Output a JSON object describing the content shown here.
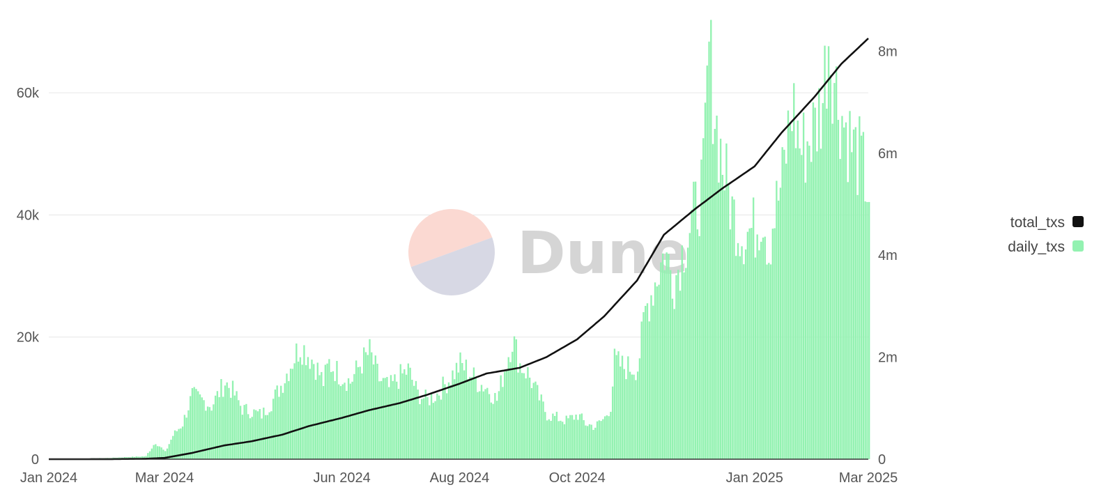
{
  "chart_data": {
    "type": "bar",
    "title": "",
    "xlabel": "",
    "ylabel_left": "",
    "ylabel_right": "",
    "x_ticks": [
      "Jan 2024",
      "Mar 2024",
      "Jun 2024",
      "Aug 2024",
      "Oct 2024",
      "Jan 2025",
      "Mar 2025"
    ],
    "x_range": [
      "2024-01-01",
      "2025-03-01"
    ],
    "y_left_ticks": [
      "0",
      "20k",
      "40k",
      "60k"
    ],
    "y_left_range": [
      0,
      72000
    ],
    "y_right_ticks": [
      "0",
      "2m",
      "4m",
      "6m",
      "8m"
    ],
    "y_right_range": [
      0,
      8620000
    ],
    "grid": true,
    "legend_position": "right",
    "series": [
      {
        "name": "total_txs",
        "type": "line",
        "axis": "right",
        "color": "#111111",
        "points": [
          [
            "2024-01-01",
            0
          ],
          [
            "2024-02-01",
            1000
          ],
          [
            "2024-02-20",
            8000
          ],
          [
            "2024-03-01",
            25000
          ],
          [
            "2024-03-15",
            120000
          ],
          [
            "2024-04-01",
            270000
          ],
          [
            "2024-04-15",
            350000
          ],
          [
            "2024-05-01",
            480000
          ],
          [
            "2024-05-15",
            650000
          ],
          [
            "2024-06-01",
            810000
          ],
          [
            "2024-06-15",
            960000
          ],
          [
            "2024-07-01",
            1100000
          ],
          [
            "2024-07-15",
            1260000
          ],
          [
            "2024-08-01",
            1480000
          ],
          [
            "2024-08-15",
            1680000
          ],
          [
            "2024-09-01",
            1790000
          ],
          [
            "2024-09-15",
            2000000
          ],
          [
            "2024-10-01",
            2350000
          ],
          [
            "2024-10-15",
            2800000
          ],
          [
            "2024-11-01",
            3500000
          ],
          [
            "2024-11-15",
            4400000
          ],
          [
            "2024-12-01",
            4900000
          ],
          [
            "2024-12-15",
            5300000
          ],
          [
            "2025-01-01",
            5740000
          ],
          [
            "2025-01-15",
            6400000
          ],
          [
            "2025-02-01",
            7100000
          ],
          [
            "2025-02-15",
            7750000
          ],
          [
            "2025-03-01",
            8250000
          ]
        ]
      },
      {
        "name": "daily_txs",
        "type": "bar",
        "axis": "left",
        "color": "#93f2b1",
        "points": [
          [
            "2024-01-01",
            0
          ],
          [
            "2024-02-01",
            200
          ],
          [
            "2024-02-20",
            500
          ],
          [
            "2024-02-22",
            1500
          ],
          [
            "2024-02-25",
            2900
          ],
          [
            "2024-03-01",
            1200
          ],
          [
            "2024-03-05",
            4000
          ],
          [
            "2024-03-10",
            6000
          ],
          [
            "2024-03-15",
            10800
          ],
          [
            "2024-03-20",
            10000
          ],
          [
            "2024-03-25",
            9000
          ],
          [
            "2024-04-01",
            13000
          ],
          [
            "2024-04-05",
            11500
          ],
          [
            "2024-04-10",
            8500
          ],
          [
            "2024-04-15",
            8000
          ],
          [
            "2024-04-20",
            7500
          ],
          [
            "2024-04-25",
            9500
          ],
          [
            "2024-05-01",
            13000
          ],
          [
            "2024-05-05",
            16000
          ],
          [
            "2024-05-10",
            19200
          ],
          [
            "2024-05-13",
            18200
          ],
          [
            "2024-05-17",
            16500
          ],
          [
            "2024-05-22",
            13000
          ],
          [
            "2024-05-25",
            16200
          ],
          [
            "2024-05-30",
            14500
          ],
          [
            "2024-06-05",
            13000
          ],
          [
            "2024-06-10",
            16000
          ],
          [
            "2024-06-15",
            18000
          ],
          [
            "2024-06-20",
            13500
          ],
          [
            "2024-06-25",
            12000
          ],
          [
            "2024-07-01",
            14000
          ],
          [
            "2024-07-05",
            15000
          ],
          [
            "2024-07-10",
            11000
          ],
          [
            "2024-07-15",
            10000
          ],
          [
            "2024-07-20",
            11000
          ],
          [
            "2024-07-25",
            13000
          ],
          [
            "2024-08-01",
            16000
          ],
          [
            "2024-08-05",
            15000
          ],
          [
            "2024-08-10",
            13000
          ],
          [
            "2024-08-15",
            12000
          ],
          [
            "2024-08-20",
            10000
          ],
          [
            "2024-08-25",
            16500
          ],
          [
            "2024-08-28",
            20500
          ],
          [
            "2024-09-01",
            16000
          ],
          [
            "2024-09-05",
            14500
          ],
          [
            "2024-09-10",
            11000
          ],
          [
            "2024-09-15",
            7500
          ],
          [
            "2024-09-20",
            7000
          ],
          [
            "2024-09-25",
            6500
          ],
          [
            "2024-10-01",
            7500
          ],
          [
            "2024-10-05",
            6000
          ],
          [
            "2024-10-10",
            5500
          ],
          [
            "2024-10-15",
            7000
          ],
          [
            "2024-10-18",
            9000
          ],
          [
            "2024-10-20",
            16500
          ],
          [
            "2024-10-25",
            15500
          ],
          [
            "2024-11-01",
            15500
          ],
          [
            "2024-11-05",
            25000
          ],
          [
            "2024-11-10",
            30000
          ],
          [
            "2024-11-15",
            35000
          ],
          [
            "2024-11-20",
            30000
          ],
          [
            "2024-11-25",
            36000
          ],
          [
            "2024-12-01",
            42000
          ],
          [
            "2024-12-05",
            47000
          ],
          [
            "2024-12-08",
            69000
          ],
          [
            "2024-12-12",
            56000
          ],
          [
            "2024-12-15",
            50000
          ],
          [
            "2024-12-20",
            42000
          ],
          [
            "2024-12-25",
            38000
          ],
          [
            "2025-01-01",
            39000
          ],
          [
            "2025-01-05",
            42000
          ],
          [
            "2025-01-08",
            35000
          ],
          [
            "2025-01-10",
            40000
          ],
          [
            "2025-01-15",
            47000
          ],
          [
            "2025-01-20",
            60000
          ],
          [
            "2025-01-25",
            52000
          ],
          [
            "2025-02-01",
            56000
          ],
          [
            "2025-02-05",
            61000
          ],
          [
            "2025-02-08",
            72000
          ],
          [
            "2025-02-12",
            62000
          ],
          [
            "2025-02-15",
            58000
          ],
          [
            "2025-02-20",
            53000
          ],
          [
            "2025-02-25",
            50000
          ],
          [
            "2025-03-01",
            45000
          ]
        ]
      }
    ]
  },
  "watermark": {
    "text": "Dune",
    "circle_top_color": "#fbd9d2",
    "circle_bottom_color": "#d7d8e4"
  },
  "legend": [
    {
      "label": "total_txs",
      "color": "#111111"
    },
    {
      "label": "daily_txs",
      "color": "#93f2b1"
    }
  ]
}
